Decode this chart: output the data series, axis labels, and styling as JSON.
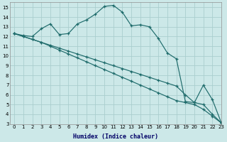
{
  "xlabel": "Humidex (Indice chaleur)",
  "bg_color": "#cce8e8",
  "grid_color": "#aacece",
  "line_color": "#1e6b6b",
  "xlim": [
    -0.5,
    23
  ],
  "ylim": [
    3,
    15.5
  ],
  "xticks": [
    0,
    1,
    2,
    3,
    4,
    5,
    6,
    7,
    8,
    9,
    10,
    11,
    12,
    13,
    14,
    15,
    16,
    17,
    18,
    19,
    20,
    21,
    22,
    23
  ],
  "yticks": [
    3,
    4,
    5,
    6,
    7,
    8,
    9,
    10,
    11,
    12,
    13,
    14,
    15
  ],
  "line1_x": [
    0,
    1,
    2,
    3,
    4,
    5,
    6,
    7,
    8,
    9,
    10,
    11,
    12,
    13,
    14,
    15,
    16,
    17,
    18,
    19,
    20,
    21,
    22,
    23
  ],
  "line1_y": [
    12.3,
    12.1,
    12.0,
    12.8,
    13.3,
    12.2,
    12.3,
    13.3,
    13.7,
    14.3,
    15.1,
    15.2,
    14.5,
    13.1,
    13.2,
    13.0,
    11.8,
    10.3,
    9.7,
    5.3,
    5.2,
    7.0,
    5.5,
    3.1
  ],
  "line2_x": [
    0,
    1,
    2,
    3,
    4,
    5,
    6,
    7,
    8,
    9,
    10,
    11,
    12,
    13,
    14,
    15,
    16,
    17,
    18,
    19,
    20,
    21,
    22,
    23
  ],
  "line2_y": [
    12.3,
    12.0,
    11.7,
    11.4,
    11.1,
    10.8,
    10.5,
    10.2,
    9.9,
    9.6,
    9.3,
    9.0,
    8.7,
    8.4,
    8.1,
    7.8,
    7.5,
    7.2,
    6.9,
    6.0,
    5.2,
    5.0,
    4.0,
    3.1
  ],
  "line3_x": [
    0,
    1,
    2,
    3,
    4,
    5,
    6,
    7,
    8,
    9,
    10,
    11,
    12,
    13,
    14,
    15,
    16,
    17,
    18,
    19,
    20,
    21,
    22,
    23
  ],
  "line3_y": [
    12.3,
    12.0,
    11.7,
    11.4,
    11.0,
    10.6,
    10.2,
    9.8,
    9.4,
    9.0,
    8.6,
    8.2,
    7.8,
    7.4,
    7.0,
    6.6,
    6.2,
    5.8,
    5.4,
    5.2,
    5.0,
    4.5,
    3.8,
    3.1
  ]
}
